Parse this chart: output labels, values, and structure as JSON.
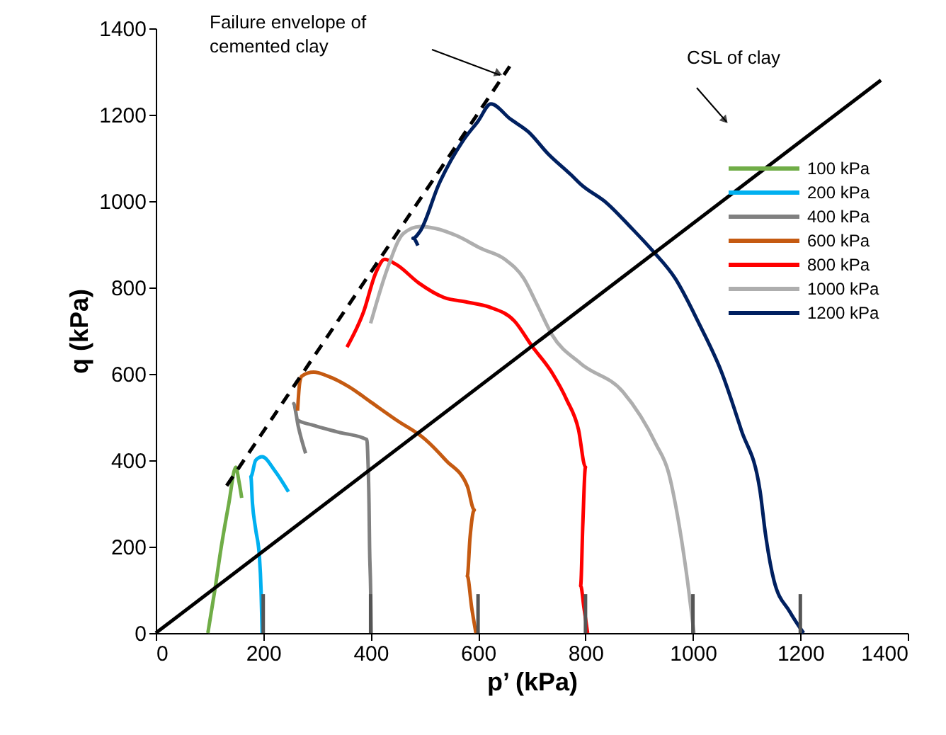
{
  "chart_data": {
    "type": "line",
    "xlabel": "p’ (kPa)",
    "ylabel": "q (kPa)",
    "xlim": [
      0,
      1400
    ],
    "ylim": [
      0,
      1400
    ],
    "xticks": [
      0,
      200,
      400,
      600,
      800,
      1000,
      1200,
      1400
    ],
    "yticks": [
      0,
      200,
      400,
      600,
      800,
      1000,
      1200,
      1400
    ],
    "grid": false,
    "legend": "top right",
    "marker": "none",
    "line_style": "solid",
    "series": [
      {
        "name": "100 kPa",
        "color": "#70ad47",
        "x": [
          97,
          110,
          122,
          136,
          149,
          155,
          160
        ],
        "values": [
          0,
          100,
          200,
          300,
          384,
          350,
          313
        ]
      },
      {
        "name": "200 kPa",
        "color": "#00b0f0",
        "x": [
          198,
          196,
          193,
          186,
          180,
          177,
          186,
          198,
          222,
          247
        ],
        "values": [
          0,
          100,
          176,
          240,
          300,
          362,
          400,
          408,
          375,
          327
        ]
      },
      {
        "name": "400 kPa",
        "color": "#808080",
        "x": [
          401,
          400,
          398,
          397,
          395,
          393,
          340,
          290,
          264,
          257,
          265,
          279
        ],
        "values": [
          0,
          100,
          200,
          300,
          400,
          448,
          465,
          482,
          493,
          531,
          480,
          416
        ]
      },
      {
        "name": "600 kPa",
        "color": "#c55a11",
        "x": [
          596,
          588,
          580,
          585,
          593,
          580,
          540,
          501,
          448,
          400,
          360,
          320,
          294,
          272,
          268,
          264
        ],
        "values": [
          0,
          60,
          132,
          220,
          285,
          340,
          400,
          449,
          493,
          535,
          570,
          595,
          604,
          595,
          580,
          515
        ]
      },
      {
        "name": "800 kPa",
        "color": "#ff0000",
        "x": [
          804,
          797,
          791,
          795,
          800,
          787,
          765,
          738,
          700,
          668,
          620,
          580,
          536,
          490,
          448,
          426,
          409,
          387,
          356
        ],
        "values": [
          0,
          60,
          110,
          250,
          384,
          471,
          540,
          602,
          665,
          722,
          755,
          766,
          777,
          810,
          853,
          865,
          832,
          744,
          662
        ]
      },
      {
        "name": "1000 kPa",
        "color": "#aeaeae",
        "x": [
          1002,
          990,
          971,
          955,
          931,
          870,
          791,
          738,
          710,
          685,
          650,
          606,
          560,
          520,
          492,
          461,
          431,
          400
        ],
        "values": [
          0,
          120,
          274,
          370,
          438,
          558,
          624,
          690,
          760,
          821,
          865,
          890,
          920,
          937,
          941,
          925,
          843,
          717
        ]
      },
      {
        "name": "1200 kPa",
        "color": "#002060",
        "x": [
          1206,
          1180,
          1151,
          1135,
          1125,
          1090,
          1054,
          1010,
          967,
          925,
          883,
          840,
          791,
          773,
          730,
          694,
          660,
          624,
          600,
          571,
          527,
          492,
          479,
          488
        ],
        "values": [
          0,
          50,
          121,
          230,
          329,
          470,
          602,
          720,
          821,
          885,
          941,
          995,
          1039,
          1061,
          1110,
          1160,
          1190,
          1225,
          1185,
          1138,
          1039,
          930,
          914,
          897
        ]
      },
      {
        "color": "#000000",
        "x": [
          0,
          1350
        ],
        "values": [
          0,
          1280
        ]
      },
      {
        "color": "#000000",
        "line_style": "dashed",
        "x": [
          132,
          659
        ],
        "values": [
          341,
          1312
        ]
      },
      {
        "color": "#555555",
        "x": [
          200,
          200
        ],
        "values": [
          0,
          90
        ]
      },
      {
        "color": "#555555",
        "x": [
          400,
          400
        ],
        "values": [
          0,
          90
        ]
      },
      {
        "color": "#555555",
        "x": [
          600,
          600
        ],
        "values": [
          0,
          90
        ]
      },
      {
        "color": "#555555",
        "x": [
          800,
          800
        ],
        "values": [
          0,
          90
        ]
      },
      {
        "color": "#555555",
        "x": [
          1000,
          1000
        ],
        "values": [
          0,
          90
        ]
      },
      {
        "color": "#555555",
        "x": [
          1200,
          1200
        ],
        "values": [
          0,
          90
        ]
      }
    ],
    "annotations": [
      "Failure envelope of\ncemented clay",
      "CSL of clay"
    ]
  }
}
